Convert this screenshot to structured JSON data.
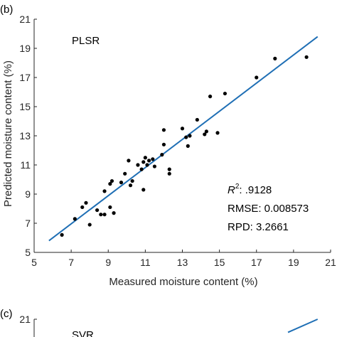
{
  "colors": {
    "fit_line": "#1f6fb5",
    "points": "#000000",
    "axis": "#262626"
  },
  "chart_data": [
    {
      "type": "scatter",
      "panel_label": "(b)",
      "model_label": "PLSR",
      "xlabel": "Measured moisture content (%)",
      "ylabel": "Predicted moisture content (%)",
      "xlim": [
        5,
        21
      ],
      "ylim": [
        5,
        21
      ],
      "xticks": [
        "5",
        "7",
        "9",
        "11",
        "13",
        "15",
        "17",
        "19",
        "21"
      ],
      "yticks": [
        "5",
        "7",
        "9",
        "11",
        "13",
        "15",
        "17",
        "19",
        "21"
      ],
      "grid": false,
      "fit_line": {
        "x": [
          5.8,
          20.3
        ],
        "y": [
          5.8,
          19.8
        ]
      },
      "stats": {
        "r2_label": "R",
        "r2_sup": "2",
        "r2_value": ": .9128",
        "rmse": "RMSE: 0.008573",
        "rpd": "RPD: 3.2661"
      },
      "points": [
        {
          "x": 6.5,
          "y": 6.2
        },
        {
          "x": 7.2,
          "y": 7.3
        },
        {
          "x": 7.6,
          "y": 8.1
        },
        {
          "x": 7.8,
          "y": 8.4
        },
        {
          "x": 8.0,
          "y": 6.9
        },
        {
          "x": 8.4,
          "y": 7.9
        },
        {
          "x": 8.6,
          "y": 7.6
        },
        {
          "x": 8.8,
          "y": 7.6
        },
        {
          "x": 8.8,
          "y": 9.2
        },
        {
          "x": 9.1,
          "y": 9.7
        },
        {
          "x": 9.2,
          "y": 9.9
        },
        {
          "x": 9.1,
          "y": 8.1
        },
        {
          "x": 9.3,
          "y": 7.7
        },
        {
          "x": 9.7,
          "y": 9.8
        },
        {
          "x": 9.9,
          "y": 10.4
        },
        {
          "x": 10.1,
          "y": 11.3
        },
        {
          "x": 10.2,
          "y": 9.6
        },
        {
          "x": 10.3,
          "y": 9.9
        },
        {
          "x": 10.6,
          "y": 11.0
        },
        {
          "x": 10.8,
          "y": 10.7
        },
        {
          "x": 10.9,
          "y": 11.2
        },
        {
          "x": 11.0,
          "y": 11.5
        },
        {
          "x": 11.1,
          "y": 11.0
        },
        {
          "x": 11.2,
          "y": 11.3
        },
        {
          "x": 11.4,
          "y": 11.4
        },
        {
          "x": 11.5,
          "y": 10.9
        },
        {
          "x": 10.9,
          "y": 9.3
        },
        {
          "x": 11.9,
          "y": 11.7
        },
        {
          "x": 12.0,
          "y": 12.4
        },
        {
          "x": 12.0,
          "y": 13.4
        },
        {
          "x": 12.3,
          "y": 10.4
        },
        {
          "x": 12.3,
          "y": 10.7
        },
        {
          "x": 13.0,
          "y": 13.5
        },
        {
          "x": 13.2,
          "y": 12.9
        },
        {
          "x": 13.3,
          "y": 12.3
        },
        {
          "x": 13.4,
          "y": 13.0
        },
        {
          "x": 13.8,
          "y": 14.1
        },
        {
          "x": 14.2,
          "y": 13.1
        },
        {
          "x": 14.3,
          "y": 13.3
        },
        {
          "x": 14.5,
          "y": 15.7
        },
        {
          "x": 14.9,
          "y": 13.2
        },
        {
          "x": 15.3,
          "y": 15.9
        },
        {
          "x": 17.0,
          "y": 17.0
        },
        {
          "x": 18.0,
          "y": 18.3
        },
        {
          "x": 19.7,
          "y": 18.4
        }
      ]
    },
    {
      "type": "scatter",
      "panel_label": "(c)",
      "model_label": "SVR",
      "ylim": [
        5,
        21
      ],
      "yticks": [
        "21"
      ],
      "fit_line": {
        "x": [
          18.7,
          20.3
        ],
        "y": [
          20.1,
          21.0
        ]
      }
    }
  ]
}
